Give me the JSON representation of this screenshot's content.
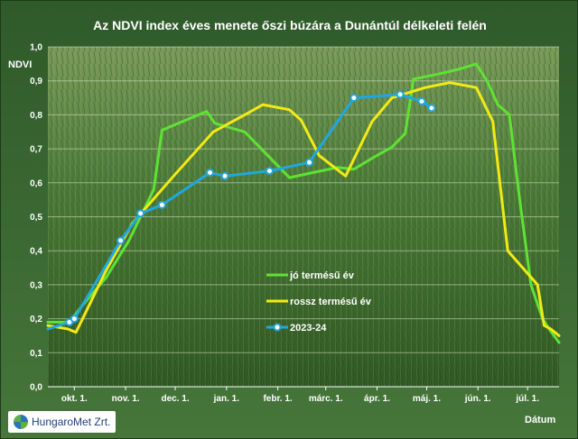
{
  "chart_data": {
    "type": "line",
    "title": "Az NDVI index éves menete őszi búzára a Dunántúl délkeleti felén",
    "ylabel": "NDVI",
    "xlabel": "Dátum",
    "ylim": [
      0,
      1
    ],
    "yticks": [
      "0,0",
      "0,1",
      "0,2",
      "0,3",
      "0,4",
      "0,5",
      "0,6",
      "0,7",
      "0,8",
      "0,9",
      "1,0"
    ],
    "xlim": [
      "2023-09-15",
      "2024-07-20"
    ],
    "xticks": [
      {
        "date": "2023-10-01",
        "label": "okt. 1."
      },
      {
        "date": "2023-11-01",
        "label": "nov. 1."
      },
      {
        "date": "2023-12-01",
        "label": "dec. 1."
      },
      {
        "date": "2024-01-01",
        "label": "jan. 1."
      },
      {
        "date": "2024-02-01",
        "label": "febr. 1."
      },
      {
        "date": "2024-03-01",
        "label": "márc. 1."
      },
      {
        "date": "2024-04-01",
        "label": "ápr. 1."
      },
      {
        "date": "2024-05-01",
        "label": "máj. 1."
      },
      {
        "date": "2024-06-01",
        "label": "jún. 1."
      },
      {
        "date": "2024-07-01",
        "label": "júl. 1."
      }
    ],
    "grid": true,
    "legend": "center-right",
    "series": [
      {
        "name": "jó termésű év",
        "color": "#5ee234",
        "markers": false,
        "points": [
          [
            "2023-09-15",
            0.19
          ],
          [
            "2023-09-28",
            0.19
          ],
          [
            "2023-10-06",
            0.24
          ],
          [
            "2023-10-20",
            0.32
          ],
          [
            "2023-11-03",
            0.43
          ],
          [
            "2023-11-18",
            0.58
          ],
          [
            "2023-11-23",
            0.755
          ],
          [
            "2023-12-20",
            0.81
          ],
          [
            "2023-12-25",
            0.775
          ],
          [
            "2024-01-12",
            0.75
          ],
          [
            "2024-02-08",
            0.615
          ],
          [
            "2024-02-22",
            0.63
          ],
          [
            "2024-03-08",
            0.645
          ],
          [
            "2024-03-18",
            0.64
          ],
          [
            "2024-03-30",
            0.675
          ],
          [
            "2024-04-10",
            0.705
          ],
          [
            "2024-04-18",
            0.745
          ],
          [
            "2024-04-23",
            0.905
          ],
          [
            "2024-05-08",
            0.92
          ],
          [
            "2024-05-21",
            0.935
          ],
          [
            "2024-05-31",
            0.95
          ],
          [
            "2024-06-07",
            0.895
          ],
          [
            "2024-06-13",
            0.83
          ],
          [
            "2024-06-20",
            0.8
          ],
          [
            "2024-06-26",
            0.56
          ],
          [
            "2024-07-03",
            0.3
          ],
          [
            "2024-07-10",
            0.2
          ],
          [
            "2024-07-14",
            0.17
          ],
          [
            "2024-07-20",
            0.13
          ]
        ]
      },
      {
        "name": "rossz termésű év",
        "color": "#f3ea14",
        "markers": false,
        "points": [
          [
            "2023-09-15",
            0.18
          ],
          [
            "2023-09-27",
            0.17
          ],
          [
            "2023-10-02",
            0.16
          ],
          [
            "2023-10-20",
            0.34
          ],
          [
            "2023-11-05",
            0.48
          ],
          [
            "2023-11-30",
            0.62
          ],
          [
            "2023-12-24",
            0.75
          ],
          [
            "2024-01-12",
            0.8
          ],
          [
            "2024-01-23",
            0.83
          ],
          [
            "2024-02-08",
            0.815
          ],
          [
            "2024-02-15",
            0.785
          ],
          [
            "2024-02-26",
            0.68
          ],
          [
            "2024-03-13",
            0.62
          ],
          [
            "2024-03-29",
            0.78
          ],
          [
            "2024-04-10",
            0.85
          ],
          [
            "2024-04-30",
            0.88
          ],
          [
            "2024-05-15",
            0.895
          ],
          [
            "2024-05-31",
            0.88
          ],
          [
            "2024-06-10",
            0.78
          ],
          [
            "2024-06-19",
            0.4
          ],
          [
            "2024-07-07",
            0.3
          ],
          [
            "2024-07-11",
            0.18
          ],
          [
            "2024-07-15",
            0.17
          ],
          [
            "2024-07-20",
            0.15
          ]
        ]
      },
      {
        "name": "2023-24",
        "color": "#21a7e0",
        "markers": true,
        "points": [
          [
            "2023-09-15",
            0.17
          ],
          [
            "2023-09-28",
            0.19
          ],
          [
            "2023-10-01",
            0.2
          ],
          [
            "2023-10-12",
            0.29
          ],
          [
            "2023-10-29",
            0.43
          ],
          [
            "2023-11-10",
            0.51
          ],
          [
            "2023-11-23",
            0.535
          ],
          [
            "2023-12-22",
            0.63
          ],
          [
            "2023-12-31",
            0.62
          ],
          [
            "2024-01-27",
            0.635
          ],
          [
            "2024-02-20",
            0.66
          ],
          [
            "2024-03-18",
            0.85
          ],
          [
            "2024-04-15",
            0.86
          ],
          [
            "2024-04-28",
            0.84
          ],
          [
            "2024-05-04",
            0.82
          ]
        ],
        "marked": [
          [
            "2023-09-28",
            0.19
          ],
          [
            "2023-10-01",
            0.2
          ],
          [
            "2023-10-29",
            0.43
          ],
          [
            "2023-11-10",
            0.51
          ],
          [
            "2023-11-23",
            0.535
          ],
          [
            "2023-12-22",
            0.63
          ],
          [
            "2023-12-31",
            0.62
          ],
          [
            "2024-01-27",
            0.635
          ],
          [
            "2024-02-20",
            0.66
          ],
          [
            "2024-03-18",
            0.85
          ],
          [
            "2024-04-15",
            0.86
          ],
          [
            "2024-04-28",
            0.84
          ],
          [
            "2024-05-04",
            0.82
          ]
        ]
      }
    ]
  },
  "logo": {
    "name": "HungaroMet Zrt.",
    "mark_colors": [
      "#2b74b8",
      "#5fb040"
    ]
  }
}
